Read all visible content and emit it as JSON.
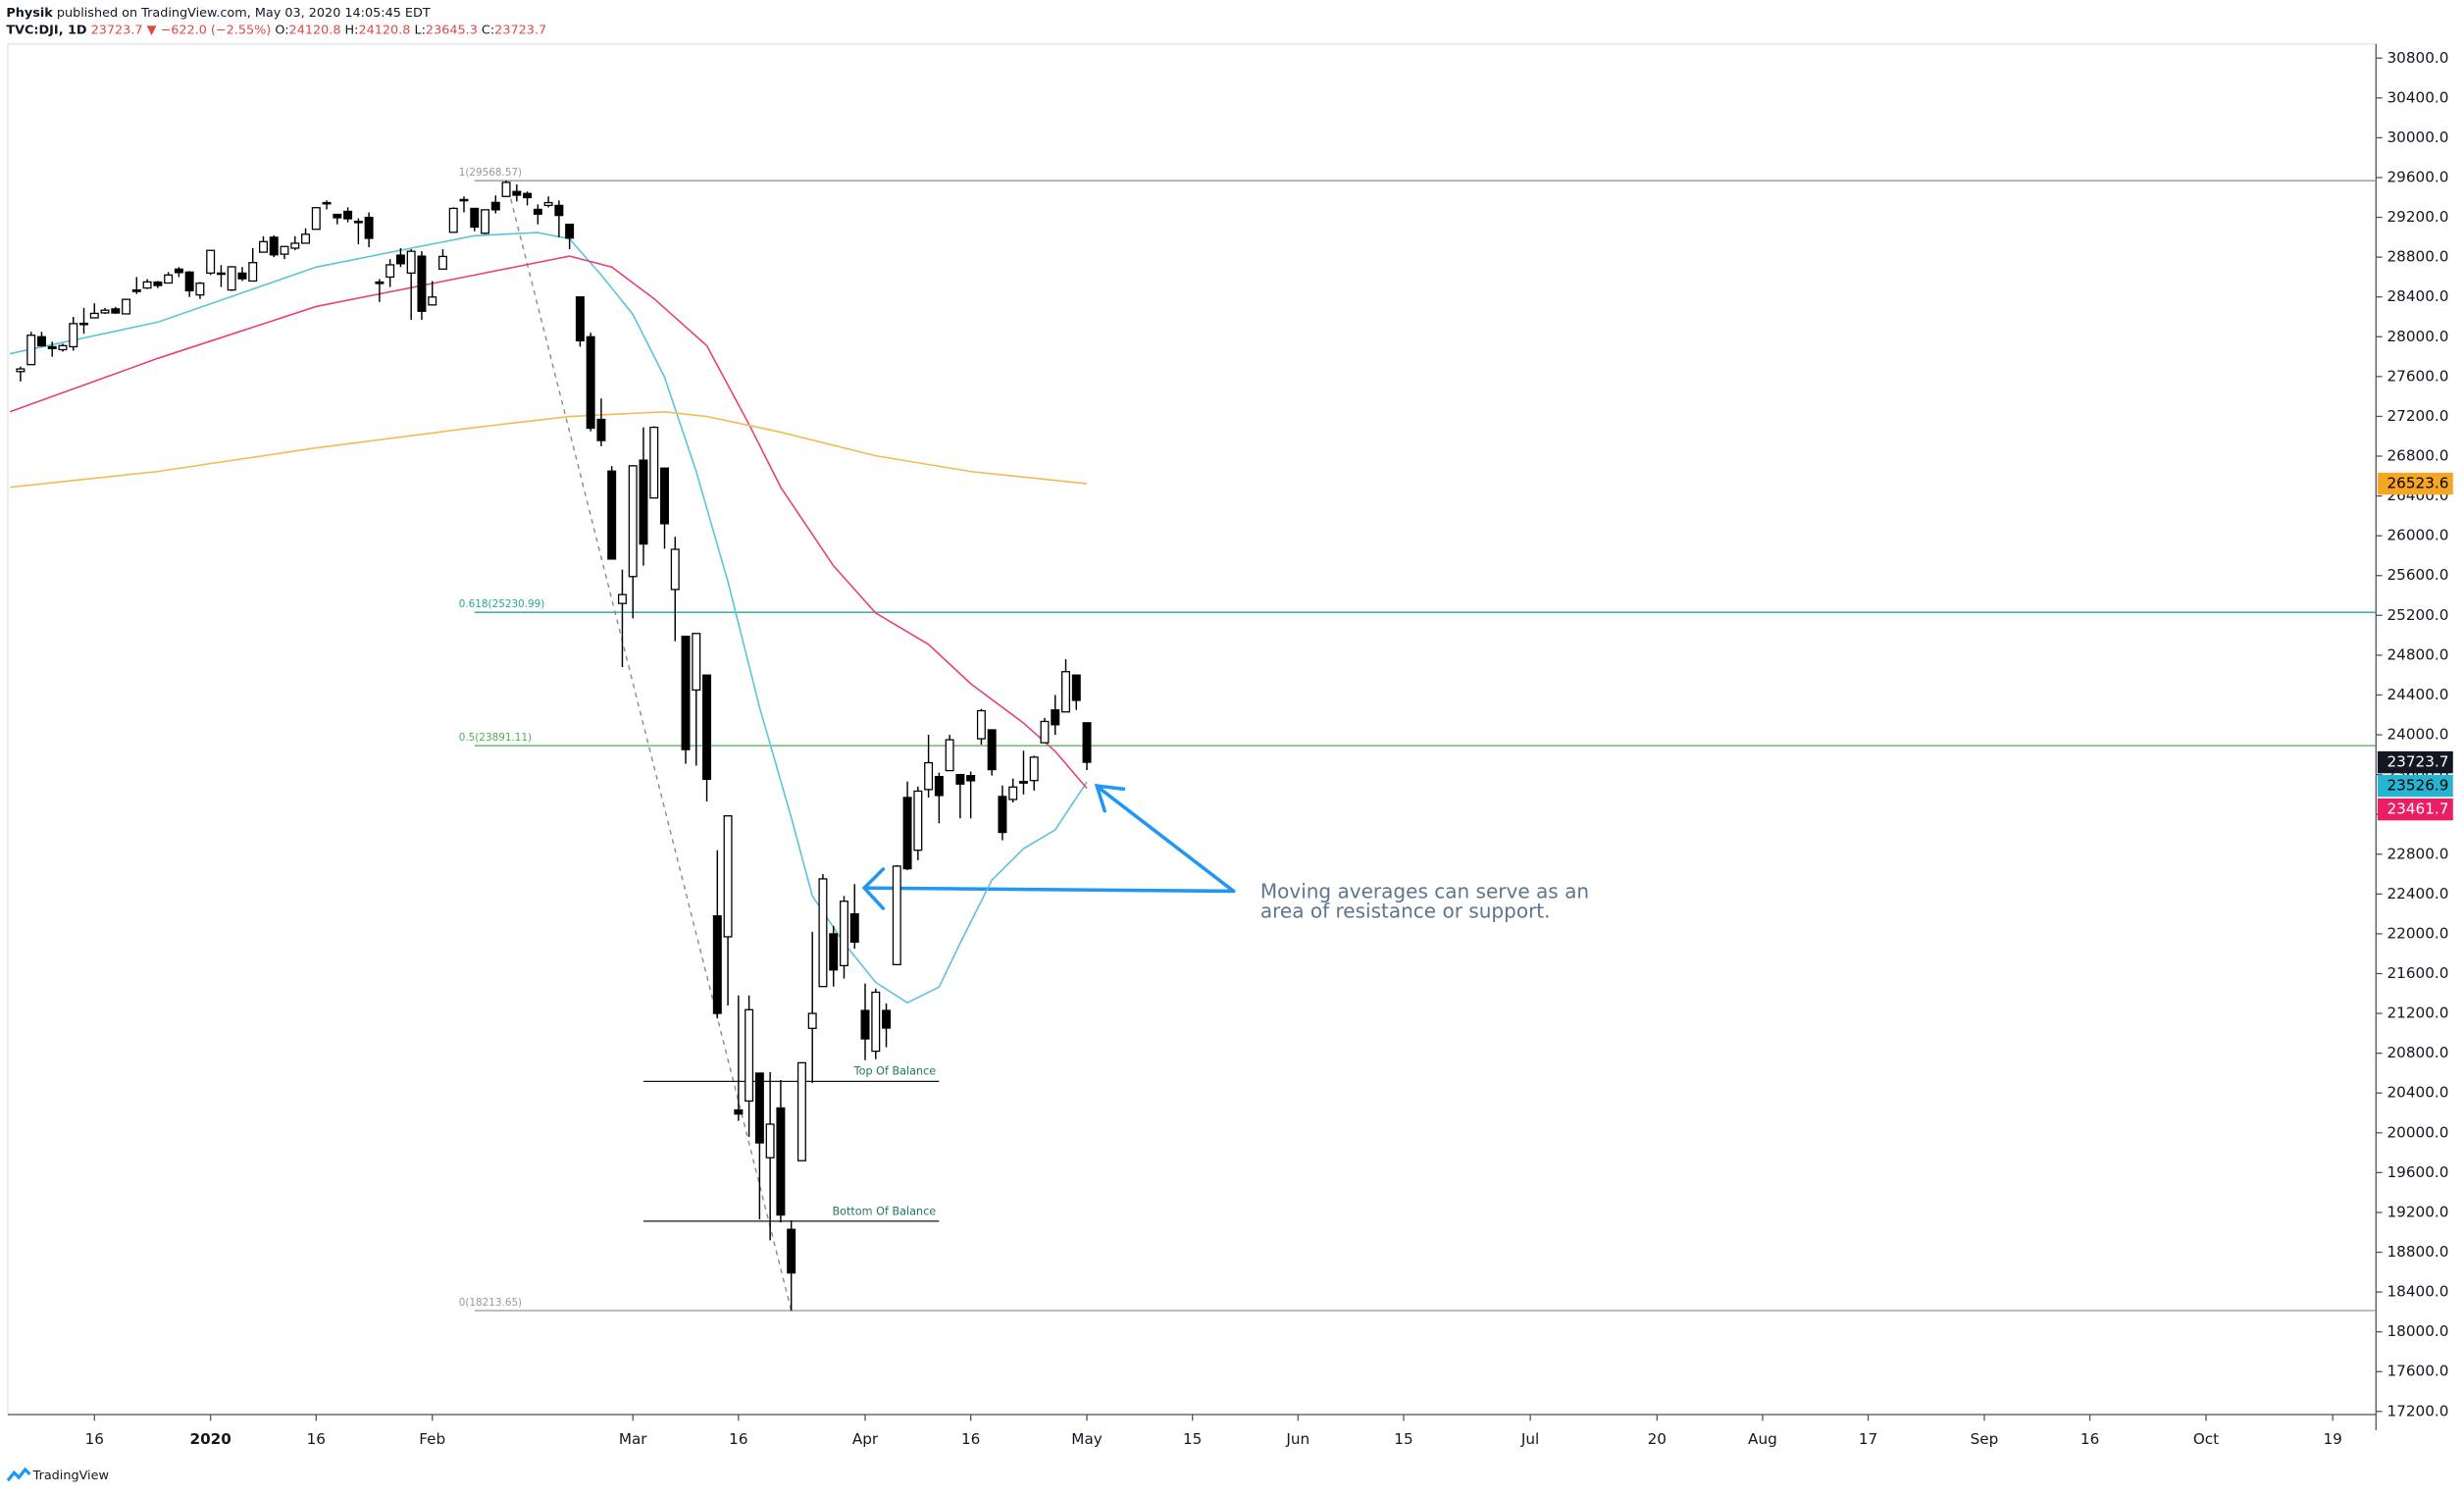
{
  "header": {
    "author": "Physik",
    "published": "published on TradingView.com, May 03, 2020 14:05:45 EDT",
    "symbol": "TVC:DJI, 1D",
    "change": "23723.7 ▼ −622.0 (−2.55%)",
    "ohlc": [
      {
        "label": "O:",
        "value": "24120.8"
      },
      {
        "label": "H:",
        "value": "24120.8"
      },
      {
        "label": "L:",
        "value": "23645.3"
      },
      {
        "label": "C:",
        "value": "23723.7"
      }
    ]
  },
  "footer": {
    "brand": "TradingView"
  },
  "chart_data": {
    "type": "candlestick",
    "up_color": "#ffffff",
    "down_color": "#000000",
    "grid": false,
    "x": [
      0,
      1,
      2,
      3,
      4,
      5,
      6,
      7,
      8,
      9,
      10,
      11,
      12,
      13,
      14,
      15,
      16,
      17,
      18,
      19,
      20,
      21,
      22,
      23,
      24,
      25,
      26,
      27,
      28,
      29,
      30,
      31,
      32,
      33,
      34,
      35,
      36,
      37,
      38,
      39,
      40,
      41,
      42,
      43,
      44,
      45,
      46,
      47,
      48,
      49,
      50,
      51,
      52,
      53,
      54,
      55,
      56,
      57,
      58,
      59,
      60,
      61,
      62,
      63,
      64,
      65,
      66,
      67,
      68,
      69,
      70,
      71,
      72,
      73,
      74,
      75,
      76,
      77,
      78,
      79,
      80,
      81,
      82,
      83,
      84,
      85,
      86,
      87,
      88,
      89,
      90,
      91,
      92,
      93,
      94,
      95,
      96,
      97,
      98,
      99,
      100,
      101
    ],
    "open": [
      27650,
      27720,
      28000,
      27900,
      27870,
      27900,
      28130,
      28190,
      28240,
      28280,
      28230,
      28470,
      28490,
      28550,
      28540,
      28680,
      28650,
      28420,
      28640,
      28640,
      28470,
      28640,
      28560,
      28850,
      29000,
      28830,
      28890,
      28940,
      29080,
      29340,
      29230,
      29260,
      29150,
      29200,
      28550,
      28600,
      28820,
      28640,
      28810,
      28320,
      28680,
      29050,
      29370,
      29290,
      29040,
      29350,
      29410,
      29460,
      29440,
      29280,
      29320,
      29320,
      29130,
      28400,
      28000,
      27170,
      26650,
      25320,
      25590,
      26760,
      26380,
      26680,
      25460,
      24990,
      24450,
      24600,
      22180,
      21970,
      20230,
      20320,
      20600,
      19750,
      20250,
      19030,
      19720,
      21050,
      21470,
      22000,
      21680,
      22200,
      21230,
      20820,
      21230,
      21690,
      23370,
      22840,
      23450,
      23580,
      23640,
      23600,
      23590,
      23960,
      24050,
      23380,
      23350,
      23530,
      23540,
      23920,
      24250,
      24230,
      24600,
      24120.8
    ],
    "high": [
      27700,
      28050,
      28050,
      27950,
      27930,
      28200,
      28290,
      28337,
      28290,
      28300,
      28380,
      28600,
      28580,
      28560,
      28650,
      28700,
      28660,
      28550,
      28870,
      28720,
      28710,
      28700,
      28890,
      29010,
      29020,
      28910,
      29010,
      29090,
      29300,
      29370,
      29230,
      29300,
      29190,
      29250,
      28580,
      28780,
      28890,
      28880,
      28860,
      28560,
      28880,
      29300,
      29410,
      29290,
      29280,
      29420,
      29570,
      29530,
      29460,
      29330,
      29410,
      29370,
      29130,
      28400,
      28040,
      27380,
      26700,
      25660,
      26710,
      27090,
      27100,
      26680,
      25990,
      24990,
      25020,
      24600,
      22840,
      23190,
      21380,
      21380,
      20600,
      20610,
      20530,
      19120,
      20700,
      22020,
      22600,
      22080,
      22380,
      22500,
      21500,
      21450,
      21300,
      22690,
      23530,
      23480,
      24000,
      23620,
      24000,
      23600,
      23630,
      24260,
      24050,
      23490,
      23560,
      23840,
      23790,
      24170,
      24400,
      24760,
      24600,
      24120.8
    ],
    "low": [
      27550,
      27720,
      27900,
      27800,
      27850,
      27860,
      28030,
      28190,
      28230,
      28230,
      28230,
      28430,
      28480,
      28490,
      28540,
      28600,
      28400,
      28380,
      28620,
      28500,
      28460,
      28560,
      28560,
      28850,
      28800,
      28780,
      28870,
      28940,
      29080,
      29280,
      29130,
      29150,
      28930,
      28900,
      28350,
      28500,
      28700,
      28170,
      28170,
      28320,
      28680,
      29050,
      29250,
      29060,
      29030,
      29240,
      29410,
      29360,
      29320,
      29130,
      29300,
      29000,
      28880,
      27900,
      27050,
      26900,
      25760,
      24680,
      25170,
      25700,
      26380,
      25870,
      24940,
      23710,
      23690,
      23330,
      21150,
      21280,
      20120,
      19960,
      19130,
      18920,
      19100,
      18210,
      19720,
      20500,
      21470,
      21470,
      21550,
      21850,
      20730,
      20740,
      20860,
      21690,
      22640,
      22740,
      23370,
      23110,
      23640,
      23160,
      23160,
      23900,
      23590,
      22940,
      23320,
      23400,
      23440,
      23920,
      24000,
      24230,
      24250,
      23645.3
    ],
    "close": [
      27677,
      28015,
      27909,
      27881,
      27911,
      28132,
      28135,
      28235,
      28267,
      28239,
      28376,
      28455,
      28551,
      28515,
      28621,
      28645,
      28462,
      28538,
      28868,
      28634,
      28703,
      28583,
      28745,
      28956,
      28823,
      28907,
      28940,
      29030,
      29297,
      29348,
      29196,
      29186,
      29160,
      28989,
      28535,
      28723,
      28734,
      28859,
      28256,
      28399,
      28807,
      29290,
      29379,
      29102,
      29276,
      29276,
      29551,
      29423,
      29398,
      29232,
      29348,
      29219,
      28992,
      27960,
      27081,
      26957,
      25766,
      25409,
      26703,
      25917,
      27090,
      26121,
      25864,
      23851,
      25018,
      23553,
      21200,
      23185,
      20189,
      21237,
      19899,
      20087,
      19174,
      18592,
      20704,
      21200,
      22552,
      21637,
      22327,
      21917,
      20944,
      21413,
      21053,
      22680,
      22654,
      23434,
      23719,
      23390,
      23950,
      23505,
      23538,
      24242,
      23650,
      23019,
      23475,
      23515,
      23775,
      24134,
      24101,
      24634,
      24346,
      23723.7
    ],
    "lines": [
      {
        "color": "#5bc4dc",
        "x": [
          -1,
          13,
          28,
          37,
          43,
          49,
          52,
          55,
          58,
          61,
          64,
          67,
          70,
          73,
          75,
          78,
          81,
          84,
          87,
          89,
          92,
          95,
          98,
          101
        ],
        "values": [
          27830,
          28147,
          28700,
          28890,
          29015,
          29047,
          28984,
          28620,
          28225,
          27594,
          26646,
          25540,
          24276,
          23170,
          22381,
          21907,
          21512,
          21307,
          21465,
          21907,
          22540,
          22855,
          23045,
          23526.9
        ]
      },
      {
        "color": "#e8426e",
        "x": [
          -1,
          13,
          28,
          43,
          49,
          52,
          56,
          60,
          65,
          69,
          72,
          77,
          81,
          86,
          90,
          95,
          98,
          101
        ],
        "values": [
          27246,
          27783,
          28304,
          28620,
          28747,
          28810,
          28700,
          28383,
          27910,
          27120,
          26488,
          25698,
          25224,
          24908,
          24513,
          24118,
          23834,
          23461.7
        ]
      },
      {
        "color": "#f7b955",
        "x": [
          -1,
          13,
          28,
          43,
          52,
          61,
          65,
          72,
          81,
          90,
          101
        ],
        "values": [
          26488,
          26646,
          26883,
          27088,
          27199,
          27246,
          27199,
          27041,
          26804,
          26646,
          26523.6
        ]
      }
    ],
    "levels": [
      {
        "label": "1(29568.57)",
        "value": 29568.57,
        "x": 43,
        "color": "#9598a1"
      },
      {
        "label": "0.618(25230.99)",
        "value": 25230.99,
        "x": 43,
        "color": "#26a69a"
      },
      {
        "label": "0.5(23891.11)",
        "value": 23891.11,
        "x": 43,
        "color": "#4caf50"
      },
      {
        "label": "0(18213.65)",
        "value": 18213.65,
        "x": 43,
        "color": "#9598a1"
      }
    ],
    "trendline": {
      "x": [
        46,
        73
      ],
      "values": [
        29568.57,
        18213.65
      ]
    },
    "zones": [
      {
        "label": "Top Of Balance",
        "value": 20517,
        "x": [
          59,
          87
        ]
      },
      {
        "label": "Bottom Of Balance",
        "value": 19112,
        "x": [
          59,
          87
        ]
      }
    ],
    "annotation": [
      "Moving averages can serve as an",
      "area of resistance or support."
    ],
    "price_labels": [
      {
        "value": 26523.6,
        "color": "#f5a623",
        "text_color": "#000000"
      },
      {
        "value": 23723.7,
        "color": "#131722",
        "text_color": "#ffffff"
      },
      {
        "value": 23526.9,
        "color": "#26b4d0",
        "text_color": "#000000"
      },
      {
        "value": 23461.7,
        "color": "#e91e63",
        "text_color": "#ffffff"
      }
    ],
    "xlim": [
      -1.2,
      223.1
    ],
    "ylim": [
      17169,
      30942
    ],
    "xticks": [
      {
        "value": 7,
        "label": "16"
      },
      {
        "value": 18,
        "label": "2020"
      },
      {
        "value": 28,
        "label": "16"
      },
      {
        "value": 39,
        "label": "Feb"
      },
      {
        "value": 58,
        "label": "Mar"
      },
      {
        "value": 68,
        "label": "16"
      },
      {
        "value": 80,
        "label": "Apr"
      },
      {
        "value": 90,
        "label": "16"
      },
      {
        "value": 101,
        "label": "May"
      },
      {
        "value": 111,
        "label": "15"
      },
      {
        "value": 121,
        "label": "Jun"
      },
      {
        "value": 131,
        "label": "15"
      },
      {
        "value": 143,
        "label": "Jul"
      },
      {
        "value": 155,
        "label": "20"
      },
      {
        "value": 165,
        "label": "Aug"
      },
      {
        "value": 175,
        "label": "17"
      },
      {
        "value": 186,
        "label": "Sep"
      },
      {
        "value": 196,
        "label": "16"
      },
      {
        "value": 207,
        "label": "Oct"
      },
      {
        "value": 219,
        "label": "19"
      }
    ],
    "yticks": [
      {
        "value": 17200,
        "label": "17200.0"
      },
      {
        "value": 17600,
        "label": "17600.0"
      },
      {
        "value": 18000,
        "label": "18000.0"
      },
      {
        "value": 18400,
        "label": "18400.0"
      },
      {
        "value": 18800,
        "label": "18800.0"
      },
      {
        "value": 19200,
        "label": "19200.0"
      },
      {
        "value": 19600,
        "label": "19600.0"
      },
      {
        "value": 20000,
        "label": "20000.0"
      },
      {
        "value": 20400,
        "label": "20400.0"
      },
      {
        "value": 20800,
        "label": "20800.0"
      },
      {
        "value": 21200,
        "label": "21200.0"
      },
      {
        "value": 21600,
        "label": "21600.0"
      },
      {
        "value": 22000,
        "label": "22000.0"
      },
      {
        "value": 22400,
        "label": "22400.0"
      },
      {
        "value": 22800,
        "label": "22800.0"
      },
      {
        "value": 23200,
        "label": "23200.0"
      },
      {
        "value": 23600,
        "label": "23600.0"
      },
      {
        "value": 24000,
        "label": "24000.0"
      },
      {
        "value": 24400,
        "label": "24400.0"
      },
      {
        "value": 24800,
        "label": "24800.0"
      },
      {
        "value": 25200,
        "label": "25200.0"
      },
      {
        "value": 25600,
        "label": "25600.0"
      },
      {
        "value": 26000,
        "label": "26000.0"
      },
      {
        "value": 26400,
        "label": "26400.0"
      },
      {
        "value": 26800,
        "label": "26800.0"
      },
      {
        "value": 27200,
        "label": "27200.0"
      },
      {
        "value": 27600,
        "label": "27600.0"
      },
      {
        "value": 28000,
        "label": "28000.0"
      },
      {
        "value": 28400,
        "label": "28400.0"
      },
      {
        "value": 28800,
        "label": "28800.0"
      },
      {
        "value": 29200,
        "label": "29200.0"
      },
      {
        "value": 29600,
        "label": "29600.0"
      },
      {
        "value": 30000,
        "label": "30000.0"
      },
      {
        "value": 30400,
        "label": "30400.0"
      },
      {
        "value": 30800,
        "label": "30800.0"
      }
    ]
  }
}
